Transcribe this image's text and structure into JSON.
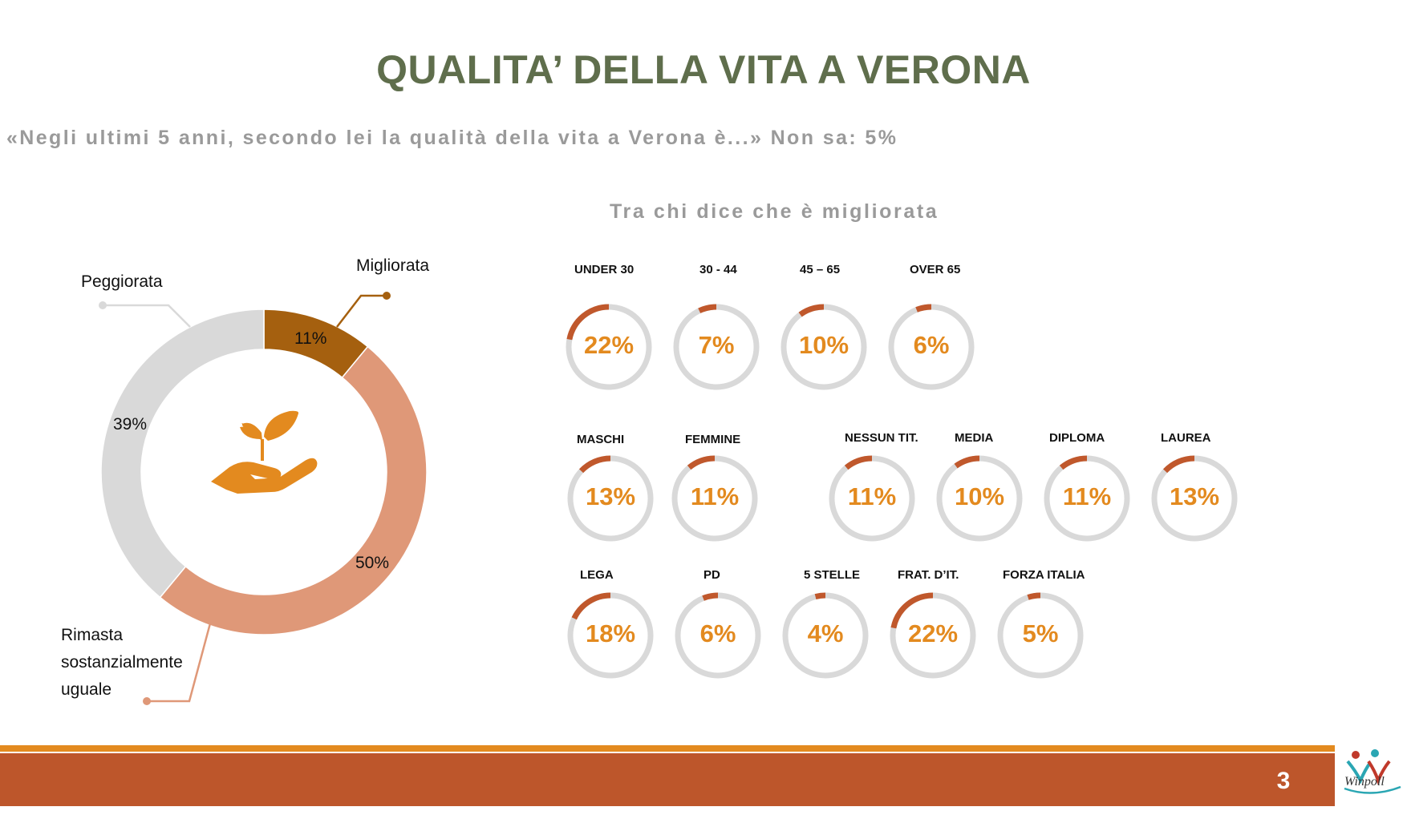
{
  "header": {
    "title": "QUALITA’ DELLA VITA A VERONA",
    "question": "«Negli ultimi 5 anni, secondo lei la qualità della vita a Verona è...» Non sa:  5%",
    "subtitle": "Tra chi dice che è migliorata"
  },
  "donut": {
    "icon": "plant-in-hand-icon",
    "labels": {
      "migliorata": "Migliorata",
      "peggiorata": "Peggiorata",
      "rimasta": [
        "Rimasta",
        "sostanzialmente",
        "uguale"
      ]
    },
    "value_labels": {
      "migliorata": "11%",
      "rimasta": "50%",
      "peggiorata": "39%"
    }
  },
  "gauges": [
    {
      "label": "UNDER 30",
      "value_label": "22%"
    },
    {
      "label": "30 - 44",
      "value_label": "7%"
    },
    {
      "label": "45 – 65",
      "value_label": "10%"
    },
    {
      "label": "OVER 65",
      "value_label": "6%"
    },
    {
      "label": "MASCHI",
      "value_label": "13%"
    },
    {
      "label": "FEMMINE",
      "value_label": "11%"
    },
    {
      "label": "NESSUN TIT.",
      "value_label": "11%"
    },
    {
      "label": "MEDIA",
      "value_label": "10%"
    },
    {
      "label": "DIPLOMA",
      "value_label": "11%"
    },
    {
      "label": "LAUREA",
      "value_label": "13%"
    },
    {
      "label": "LEGA",
      "value_label": "18%"
    },
    {
      "label": "PD",
      "value_label": "6%"
    },
    {
      "label": "5 STELLE",
      "value_label": "4%"
    },
    {
      "label": "FRAT. D’IT.",
      "value_label": "22%"
    },
    {
      "label": "FORZA ITALIA",
      "value_label": "5%"
    }
  ],
  "footer": {
    "page_number": "3",
    "logo": "winpoll-logo"
  },
  "colors": {
    "title": "#5f6e4c",
    "migliorata": "#a5600f",
    "rimasta": "#df9878",
    "peggiorata": "#d9d9d9",
    "gauge_track": "#d9d9d9",
    "gauge_fill": "#c0582c",
    "gauge_text": "#e38a1f",
    "footer_bar": "#bd562b",
    "footer_line": "#e38a1f"
  },
  "chart_data": [
    {
      "type": "pie",
      "title": "QUALITA’ DELLA VITA A VERONA",
      "categories": [
        "Migliorata",
        "Rimasta sostanzialmente uguale",
        "Peggiorata"
      ],
      "values": [
        11,
        50,
        39
      ],
      "unit": "%"
    },
    {
      "type": "bar",
      "title": "Tra chi dice che è migliorata",
      "categories": [
        "UNDER 30",
        "30 - 44",
        "45 – 65",
        "OVER 65",
        "MASCHI",
        "FEMMINE",
        "NESSUN TIT.",
        "MEDIA",
        "DIPLOMA",
        "LAUREA",
        "LEGA",
        "PD",
        "5 STELLE",
        "FRAT. D’IT.",
        "FORZA ITALIA"
      ],
      "values": [
        22,
        7,
        10,
        6,
        13,
        11,
        11,
        10,
        11,
        13,
        18,
        6,
        4,
        22,
        5
      ],
      "unit": "%"
    }
  ]
}
